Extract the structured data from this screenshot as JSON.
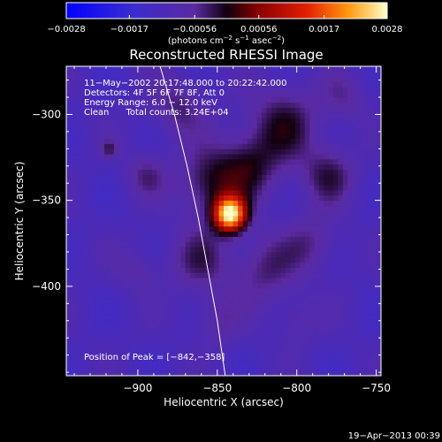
{
  "chart_data": {
    "type": "heatmap",
    "title": "Reconstructed RHESSI Image",
    "xlabel": "Heliocentric X (arcsec)",
    "ylabel": "Heliocentric Y (arcsec)",
    "xlim": [
      -945,
      -747
    ],
    "ylim": [
      -452,
      -272
    ],
    "x_ticks": [
      -900,
      -850,
      -800,
      -750
    ],
    "x_tick_labels": [
      "−900",
      "−850",
      "−800",
      "−750"
    ],
    "y_ticks": [
      -300,
      -350,
      -400
    ],
    "y_tick_labels": [
      "−300",
      "−350",
      "−400"
    ],
    "colorbar": {
      "min": -0.0028,
      "max": 0.0028,
      "ticks": [
        -0.0028,
        -0.0017,
        -0.00056,
        0.00056,
        0.0017,
        0.0028
      ],
      "tick_labels": [
        "−0.0028",
        "−0.0017",
        "−0.00056",
        "0.00056",
        "0.0017",
        "0.0028"
      ],
      "label_prefix": "(photons cm",
      "label_sup1": "−2",
      "label_mid": " s",
      "label_sup2": "−1",
      "label_mid2": " asec",
      "label_sup3": "−2",
      "label_suffix": ")"
    },
    "annotations": [
      "11−May−2002 20:17:48.000 to 20:22:42.000",
      "Detectors: 4F 5F 6F 7F 8F, Att 0",
      "Energy Range: 6.0 − 12.0 keV",
      "Clean      Total counts: 3.24E+04"
    ],
    "peak_label": "Position of Peak = [−842,−358]",
    "peak": {
      "x": -842,
      "y": -358,
      "value": 0.0028
    },
    "sources": [
      {
        "x": -842,
        "y": -358,
        "sigma": 7,
        "amp": 0.0037
      },
      {
        "x": -855,
        "y": -340,
        "sigma": 14,
        "amp": 0.001
      },
      {
        "x": -830,
        "y": -330,
        "sigma": 14,
        "amp": 0.0009
      },
      {
        "x": -808,
        "y": -305,
        "sigma": 16,
        "amp": 0.0009
      },
      {
        "x": -780,
        "y": -335,
        "sigma": 12,
        "amp": 0.0008
      },
      {
        "x": -875,
        "y": -295,
        "sigma": 12,
        "amp": 0.0007
      },
      {
        "x": -895,
        "y": -335,
        "sigma": 9,
        "amp": 0.0006
      },
      {
        "x": -918,
        "y": -320,
        "sigma": 4,
        "amp": 0.0007
      },
      {
        "x": -860,
        "y": -385,
        "sigma": 14,
        "amp": 0.0007
      },
      {
        "x": -820,
        "y": -390,
        "sigma": 14,
        "amp": 0.0007
      },
      {
        "x": -790,
        "y": -375,
        "sigma": 12,
        "amp": 0.0006
      },
      {
        "x": -850,
        "y": -420,
        "sigma": 10,
        "amp": 0.0005
      },
      {
        "x": -800,
        "y": -420,
        "sigma": 10,
        "amp": 0.0004
      },
      {
        "x": -900,
        "y": -390,
        "sigma": 10,
        "amp": 0.0004
      },
      {
        "x": -770,
        "y": -290,
        "sigma": 10,
        "amp": 0.0005
      }
    ],
    "limb_curve": [
      {
        "x": -886,
        "y": -272
      },
      {
        "x": -877,
        "y": -300
      },
      {
        "x": -869,
        "y": -330
      },
      {
        "x": -862,
        "y": -360
      },
      {
        "x": -856,
        "y": -390
      },
      {
        "x": -850,
        "y": -420
      },
      {
        "x": -845,
        "y": -452
      }
    ],
    "grid": false
  },
  "footer": {
    "timestamp": "19−Apr−2013 00:39"
  }
}
